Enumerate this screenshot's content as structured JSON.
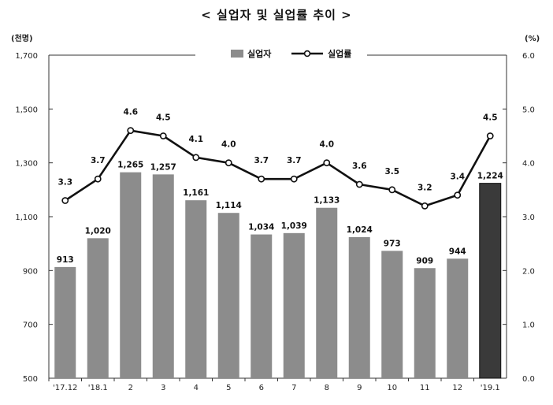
{
  "title": "< 실업자 및 실업률 추이 >",
  "chart_data": {
    "type": "bar",
    "categories": [
      "'17.12",
      "'18.1",
      "2",
      "3",
      "4",
      "5",
      "6",
      "7",
      "8",
      "9",
      "10",
      "11",
      "12",
      "'19.1"
    ],
    "series": [
      {
        "name": "실업자",
        "type": "bar",
        "axis": "left",
        "values": [
          913,
          1020,
          1265,
          1257,
          1161,
          1114,
          1034,
          1039,
          1133,
          1024,
          973,
          909,
          944,
          1224
        ],
        "labels": [
          "913",
          "1,020",
          "1,265",
          "1,257",
          "1,161",
          "1,114",
          "1,034",
          "1,039",
          "1,133",
          "1,024",
          "973",
          "909",
          "944",
          "1,224"
        ]
      },
      {
        "name": "실업률",
        "type": "line",
        "axis": "right",
        "values": [
          3.3,
          3.7,
          4.6,
          4.5,
          4.1,
          4.0,
          3.7,
          3.7,
          4.0,
          3.6,
          3.5,
          3.2,
          3.4,
          4.5
        ],
        "labels": [
          "3.3",
          "3.7",
          "4.6",
          "4.5",
          "4.1",
          "4.0",
          "3.7",
          "3.7",
          "4.0",
          "3.6",
          "3.5",
          "3.2",
          "3.4",
          "4.5"
        ]
      }
    ],
    "y_left": {
      "unit": "(천명)",
      "ylim": [
        500,
        1700
      ],
      "ticks": [
        500,
        700,
        900,
        1100,
        1300,
        1500,
        1700
      ],
      "tick_labels": [
        "500",
        "700",
        "900",
        "1,100",
        "1,300",
        "1,500",
        "1,700"
      ]
    },
    "y_right": {
      "unit": "(%)",
      "ylim": [
        0,
        6
      ],
      "ticks": [
        0,
        1,
        2,
        3,
        4,
        5,
        6
      ],
      "tick_labels": [
        "0.0",
        "1.0",
        "2.0",
        "3.0",
        "4.0",
        "5.0",
        "6.0"
      ]
    },
    "legend": [
      "실업자",
      "실업률"
    ],
    "legend_position": "top-center",
    "grid": false,
    "colors": {
      "bar": "#8c8c8c",
      "bar_highlight": "#3a3a3a",
      "line": "#111111",
      "marker_fill": "#ffffff"
    }
  }
}
